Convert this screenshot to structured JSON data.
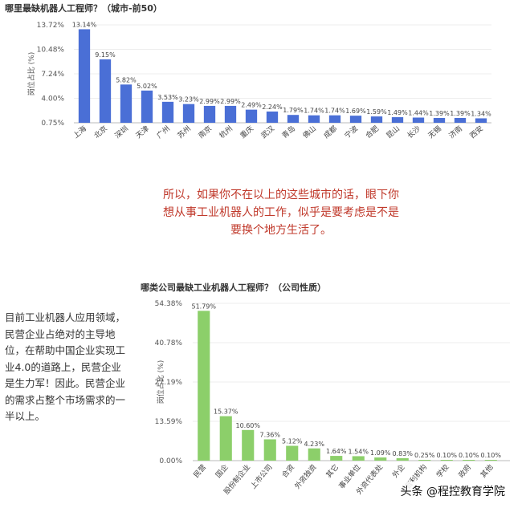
{
  "chart_data": [
    {
      "type": "bar",
      "title": "哪里最缺机器人工程师？（城市-前50）",
      "ylabel": "岗位占比 (%)",
      "yticks": [
        "13.72%",
        "10.48%",
        "7.24%",
        "4.00%",
        "0.75%"
      ],
      "ylim": [
        0.75,
        13.72
      ],
      "categories": [
        "上海",
        "北京",
        "深圳",
        "天津",
        "广州",
        "苏州",
        "南京",
        "杭州",
        "重庆",
        "武汉",
        "青岛",
        "佛山",
        "成都",
        "宁波",
        "合肥",
        "昆山",
        "长沙",
        "无锡",
        "济南",
        "西安"
      ],
      "values": [
        13.14,
        9.15,
        5.82,
        5.02,
        3.53,
        3.23,
        2.99,
        2.99,
        2.49,
        2.24,
        1.79,
        1.74,
        1.74,
        1.69,
        1.59,
        1.49,
        1.44,
        1.39,
        1.39,
        1.34
      ],
      "labels": [
        "13.14%",
        "9.15%",
        "5.82%",
        "5.02%",
        "3.53%",
        "3.23%",
        "2.99%",
        "2.99%",
        "2.49%",
        "2.24%",
        "1.79%",
        "1.74%",
        "1.74%",
        "1.69%",
        "1.59%",
        "1.49%",
        "1.44%",
        "1.39%",
        "1.39%",
        "1.34%"
      ],
      "color": "#4a6fd6"
    },
    {
      "type": "bar",
      "title": "哪类公司最缺工业机器人工程师？（公司性质）",
      "ylabel": "岗位占比 (%)",
      "yticks": [
        "54.38%",
        "40.78%",
        "27.19%",
        "13.59%",
        "0.00%"
      ],
      "ylim": [
        0,
        54.38
      ],
      "categories": [
        "民营",
        "国企",
        "股份制企业",
        "上市公司",
        "合资",
        "外资独资",
        "其它",
        "事业单位",
        "外资代表处",
        "外企",
        "非营利机构",
        "学校",
        "政府",
        "其他"
      ],
      "values": [
        51.79,
        15.37,
        10.6,
        7.36,
        5.12,
        4.23,
        1.64,
        1.54,
        1.09,
        0.83,
        0.25,
        0.1,
        0.1,
        0.1
      ],
      "labels": [
        "51.79%",
        "15.37%",
        "10.60%",
        "7.36%",
        "5.12%",
        "4.23%",
        "1.64%",
        "1.54%",
        "1.09%",
        "0.83%",
        "0.25%",
        "0.10%",
        "0.10%",
        "0.10%"
      ],
      "color": "#8ccf6a"
    }
  ],
  "caption": "所以，如果你不在以上的这些城市的话，眼下你想从事工业机器人的工作，似乎是要考虑是不是要换个地方生活了。",
  "side_text": "目前工业机器人应用领域，民营企业占绝对的主导地位，在帮助中国企业实现工业4.0的道路上，民营企业是生力军！因此。民营企业的需求占整个市场需求的一半以上。",
  "watermark": "头条 @程控教育学院"
}
